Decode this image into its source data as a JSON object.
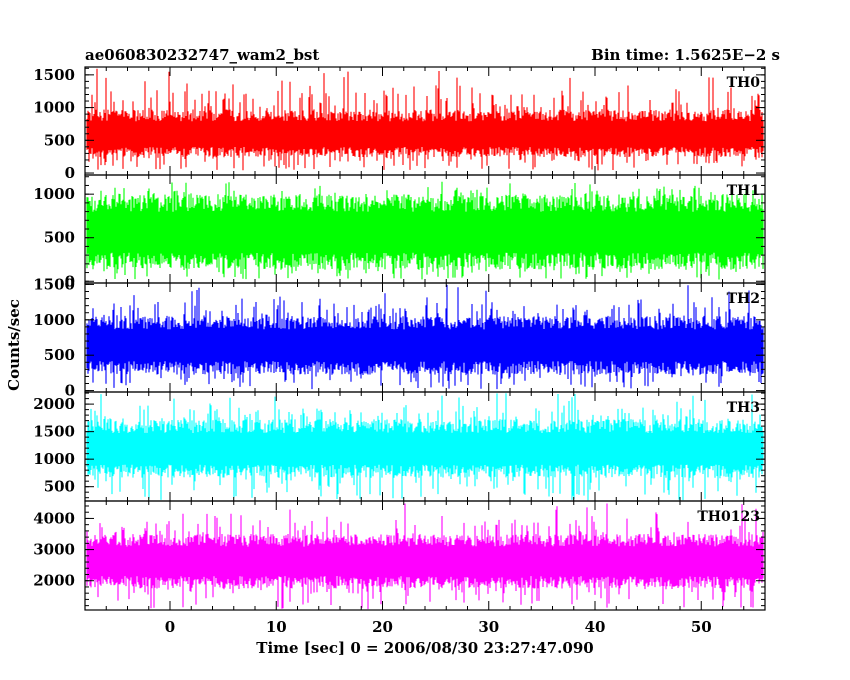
{
  "chart_data": {
    "type": "line",
    "title": "ae060830232747_wam2_bst",
    "subtitle": "Bin time: 1.5625E−2 s",
    "xlabel": "Time [sec] 0 = 2006/08/30 23:27:47.090",
    "ylabel": "Counts/sec",
    "xlim": [
      -8,
      56
    ],
    "x_range_data": [
      -7.9,
      55.9
    ],
    "x_bin": 0.015625,
    "x_ticks": [
      0,
      10,
      20,
      30,
      40,
      50
    ],
    "x_tick_labels": [
      "0",
      "10",
      "20",
      "30",
      "40",
      "50"
    ],
    "x_minor_step": 2,
    "grid": false,
    "panels": [
      {
        "name": "TH0",
        "color": "#ff0000",
        "ylim": [
          -30,
          1620
        ],
        "y_ticks": [
          0,
          500,
          1000,
          1500
        ],
        "y_tick_labels": [
          "0",
          "500",
          "1000",
          "1500"
        ],
        "y_minor_step": 100,
        "mean": 580,
        "band_low": 320,
        "band_high": 880,
        "min": 40,
        "max": 1600
      },
      {
        "name": "TH1",
        "color": "#00ff00",
        "ylim": [
          -20,
          1220
        ],
        "y_ticks": [
          0,
          500,
          1000
        ],
        "y_tick_labels": [
          "0",
          "500",
          "1000"
        ],
        "y_minor_step": 100,
        "mean": 560,
        "band_low": 230,
        "band_high": 900,
        "min": 20,
        "max": 1150
      },
      {
        "name": "TH2",
        "color": "#0000ff",
        "ylim": [
          -20,
          1520
        ],
        "y_ticks": [
          0,
          500,
          1000,
          1500
        ],
        "y_tick_labels": [
          "0",
          "500",
          "1000",
          "1500"
        ],
        "y_minor_step": 100,
        "mean": 640,
        "band_low": 320,
        "band_high": 960,
        "min": 20,
        "max": 1500
      },
      {
        "name": "TH3",
        "color": "#00ffff",
        "ylim": [
          240,
          2220
        ],
        "y_ticks": [
          500,
          1000,
          1500,
          2000
        ],
        "y_tick_labels": [
          "500",
          "1000",
          "1500",
          "2000"
        ],
        "y_minor_step": 100,
        "mean": 1180,
        "band_low": 780,
        "band_high": 1600,
        "min": 250,
        "max": 2200
      },
      {
        "name": "TH0123",
        "color": "#ff00ff",
        "ylim": [
          1060,
          4560
        ],
        "y_ticks": [
          2000,
          3000,
          4000
        ],
        "y_tick_labels": [
          "2000",
          "3000",
          "4000"
        ],
        "y_minor_step": 200,
        "mean": 2620,
        "band_low": 1950,
        "band_high": 3300,
        "min": 1070,
        "max": 4500
      }
    ]
  }
}
